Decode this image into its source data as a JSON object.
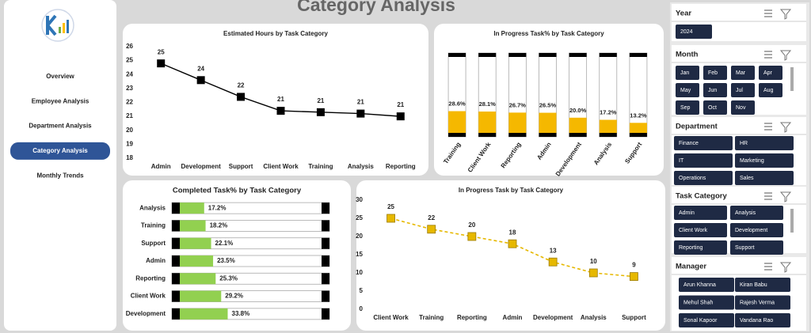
{
  "header": {
    "title": "Category Analysis"
  },
  "nav": {
    "items": [
      "Overview",
      "Employee Analysis",
      "Department Analysis",
      "Category Analysis",
      "Monthly Trends"
    ],
    "selected": 3
  },
  "slicers": [
    {
      "title": "Year",
      "items": [
        "2024"
      ]
    },
    {
      "title": "Month",
      "items": [
        "Jan",
        "Feb",
        "Mar",
        "Apr",
        "May",
        "Jun",
        "Jul",
        "Aug",
        "Sep",
        "Oct",
        "Nov"
      ]
    },
    {
      "title": "Department",
      "items": [
        "Finance",
        "HR",
        "IT",
        "Marketing",
        "Operations",
        "Sales"
      ]
    },
    {
      "title": "Task Category",
      "items": [
        "Admin",
        "Analysis",
        "Client Work",
        "Development",
        "Reporting",
        "Support"
      ]
    },
    {
      "title": "Manager",
      "items": [
        "Arun Khanna",
        "Kiran Babu",
        "Mehul Shah",
        "Rajesh Verma",
        "Sonal Kapoor",
        "Vandana Rao"
      ]
    }
  ],
  "chart_data": [
    {
      "type": "line",
      "title": "Estimated Hours by Task Category",
      "categories": [
        "Admin",
        "Development",
        "Support",
        "Client Work",
        "Training",
        "Analysis",
        "Reporting"
      ],
      "values": [
        24.8,
        23.6,
        22.4,
        21.4,
        21.3,
        21.2,
        21.0
      ],
      "value_labels": [
        "25",
        "24",
        "22",
        "21",
        "21",
        "21",
        "21"
      ],
      "color": "#000000",
      "dashed": false,
      "ylim": [
        18,
        26
      ],
      "yticks": [
        18,
        19,
        20,
        21,
        22,
        23,
        24,
        25,
        26
      ]
    },
    {
      "type": "bar",
      "orientation": "vertical",
      "title": "In Progress Task% by Task Category",
      "categories": [
        "Training",
        "Client Work",
        "Reporting",
        "Admin",
        "Development",
        "Analysis",
        "Support"
      ],
      "values": [
        28.6,
        28.1,
        26.7,
        26.5,
        20.0,
        17.2,
        13.2
      ],
      "value_labels": [
        "28.6%",
        "28.1%",
        "26.7%",
        "26.5%",
        "20.0%",
        "17.2%",
        "13.2%"
      ],
      "color": "#f5b800",
      "ylim": [
        0,
        100
      ]
    },
    {
      "type": "bar",
      "orientation": "horizontal",
      "title": "Completed Task% by Task Category",
      "categories": [
        "Analysis",
        "Training",
        "Support",
        "Admin",
        "Reporting",
        "Client Work",
        "Development"
      ],
      "values": [
        17.2,
        18.2,
        22.1,
        23.5,
        25.3,
        29.2,
        33.8
      ],
      "value_labels": [
        "17.2%",
        "18.2%",
        "22.1%",
        "23.5%",
        "25.3%",
        "29.2%",
        "33.8%"
      ],
      "color": "#92d050",
      "xlim": [
        0,
        100
      ]
    },
    {
      "type": "line",
      "title": "In Progress Task by Task Category",
      "categories": [
        "Client Work",
        "Training",
        "Reporting",
        "Admin",
        "Development",
        "Analysis",
        "Support"
      ],
      "values": [
        25,
        22,
        20,
        18,
        13,
        10,
        9
      ],
      "color": "#e6b800",
      "dashed": true,
      "ylim": [
        0,
        30
      ],
      "yticks": [
        0,
        5,
        10,
        15,
        20,
        25,
        30
      ]
    }
  ]
}
